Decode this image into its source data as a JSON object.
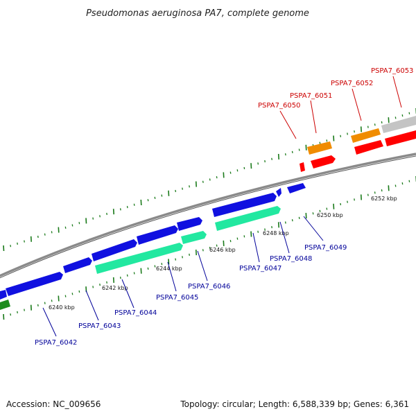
{
  "title": "Pseudomonas aeruginosa PA7, complete genome",
  "footer": {
    "accession": "Accession: NC_009656",
    "summary": "Topology: circular; Length: 6,588,339 bp; Genes: 6,361"
  },
  "colors": {
    "forward_cds": "#1010e0",
    "reverse_cds": "#ff0000",
    "forward_rna": "#22e8a0",
    "reverse_orf": "#f08c00",
    "reverse_gray": "#c4c4c4",
    "green_feature": "#1e8c1e",
    "backbone": "#8a8a8a",
    "ticks": "#1a7a1a",
    "label_reverse": "#cc0000",
    "label_forward": "#000099"
  },
  "scale_labels": [
    "6240 kbp",
    "6242 kbp",
    "6244 kbp",
    "6246 kbp",
    "6248 kbp",
    "6250 kbp",
    "6252 kbp"
  ],
  "gene_labels": {
    "reverse": [
      "PSPA7_6050",
      "PSPA7_6051",
      "PSPA7_6052",
      "PSPA7_6053"
    ],
    "forward": [
      "PSPA7_6042",
      "PSPA7_6043",
      "PSPA7_6044",
      "PSPA7_6045",
      "PSPA7_6046",
      "PSPA7_6047",
      "PSPA7_6048",
      "PSPA7_6049"
    ]
  }
}
